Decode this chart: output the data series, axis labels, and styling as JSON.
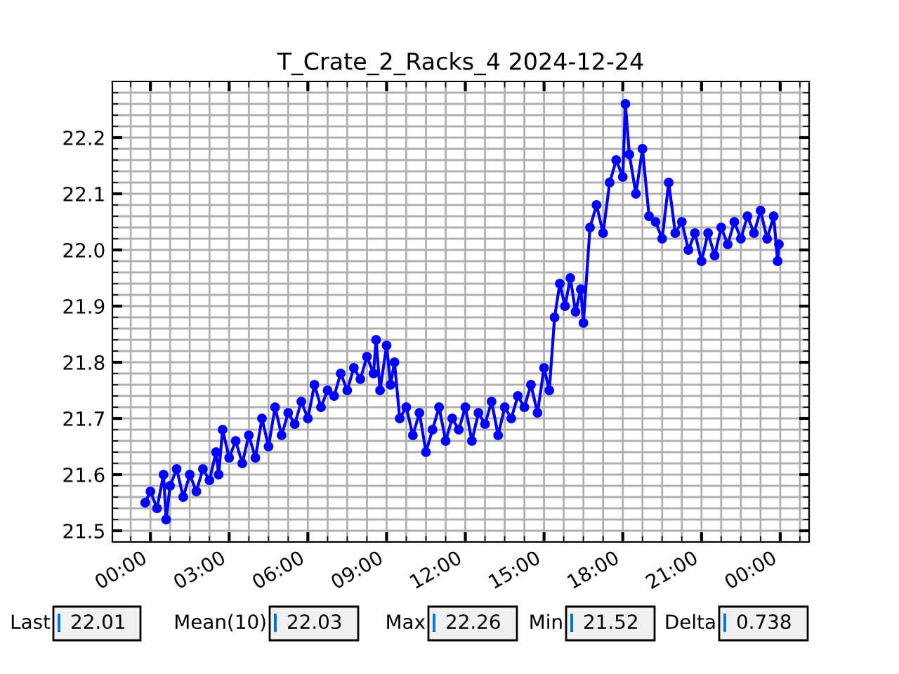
{
  "chart_data": {
    "type": "line",
    "title": "T_Crate_2_Racks_4 2024-12-24",
    "x": [
      -0.2,
      0.0,
      0.25,
      0.5,
      0.6,
      0.75,
      1.0,
      1.25,
      1.5,
      1.75,
      2.0,
      2.25,
      2.5,
      2.6,
      2.75,
      3.0,
      3.25,
      3.5,
      3.75,
      4.0,
      4.25,
      4.5,
      4.75,
      5.0,
      5.25,
      5.5,
      5.75,
      6.0,
      6.25,
      6.5,
      6.75,
      7.0,
      7.25,
      7.5,
      7.75,
      8.0,
      8.25,
      8.5,
      8.6,
      8.75,
      9.0,
      9.15,
      9.3,
      9.5,
      9.75,
      10.0,
      10.25,
      10.5,
      10.75,
      11.0,
      11.25,
      11.5,
      11.75,
      12.0,
      12.25,
      12.5,
      12.75,
      13.0,
      13.25,
      13.5,
      13.75,
      14.0,
      14.25,
      14.5,
      14.75,
      15.0,
      15.2,
      15.4,
      15.6,
      15.8,
      16.0,
      16.2,
      16.4,
      16.5,
      16.75,
      17.0,
      17.25,
      17.5,
      17.75,
      18.0,
      18.1,
      18.25,
      18.5,
      18.75,
      19.0,
      19.25,
      19.5,
      19.75,
      20.0,
      20.25,
      20.5,
      20.75,
      21.0,
      21.25,
      21.5,
      21.75,
      22.0,
      22.25,
      22.5,
      22.75,
      23.0,
      23.25,
      23.5,
      23.75,
      23.9,
      23.95
    ],
    "series": [
      {
        "color": "#0000ff",
        "values": [
          21.55,
          21.57,
          21.54,
          21.6,
          21.52,
          21.58,
          21.61,
          21.56,
          21.6,
          21.57,
          21.61,
          21.59,
          21.64,
          21.6,
          21.68,
          21.63,
          21.66,
          21.62,
          21.67,
          21.63,
          21.7,
          21.65,
          21.72,
          21.67,
          21.71,
          21.69,
          21.73,
          21.7,
          21.76,
          21.72,
          21.75,
          21.74,
          21.78,
          21.75,
          21.79,
          21.77,
          21.81,
          21.78,
          21.84,
          21.75,
          21.83,
          21.76,
          21.8,
          21.7,
          21.72,
          21.67,
          21.71,
          21.64,
          21.68,
          21.72,
          21.66,
          21.7,
          21.68,
          21.72,
          21.66,
          21.71,
          21.69,
          21.73,
          21.67,
          21.72,
          21.7,
          21.74,
          21.72,
          21.76,
          21.71,
          21.79,
          21.75,
          21.88,
          21.94,
          21.9,
          21.95,
          21.89,
          21.93,
          21.87,
          22.04,
          22.08,
          22.03,
          22.12,
          22.16,
          22.13,
          22.26,
          22.17,
          22.1,
          22.18,
          22.06,
          22.05,
          22.02,
          22.12,
          22.03,
          22.05,
          22.0,
          22.03,
          21.98,
          22.03,
          21.99,
          22.04,
          22.01,
          22.05,
          22.02,
          22.06,
          22.03,
          22.07,
          22.02,
          22.06,
          21.98,
          22.01
        ]
      }
    ],
    "marker": "circle",
    "line_style": "solid",
    "grid": true,
    "xlim": [
      -1.45,
      25.1
    ],
    "xticks": [
      {
        "value": 0,
        "label": "00:00"
      },
      {
        "value": 3,
        "label": "03:00"
      },
      {
        "value": 6,
        "label": "06:00"
      },
      {
        "value": 9,
        "label": "09:00"
      },
      {
        "value": 12,
        "label": "12:00"
      },
      {
        "value": 15,
        "label": "15:00"
      },
      {
        "value": 18,
        "label": "18:00"
      },
      {
        "value": 21,
        "label": "21:00"
      },
      {
        "value": 24,
        "label": "00:00"
      },
      {
        "value": -0.75,
        "label": null
      },
      {
        "value": 0.75,
        "label": null
      },
      {
        "value": 1.5,
        "label": null
      },
      {
        "value": 2.25,
        "label": null
      },
      {
        "value": 3.75,
        "label": null
      },
      {
        "value": 4.5,
        "label": null
      },
      {
        "value": 5.25,
        "label": null
      },
      {
        "value": 6.75,
        "label": null
      },
      {
        "value": 7.5,
        "label": null
      },
      {
        "value": 8.25,
        "label": null
      },
      {
        "value": 9.75,
        "label": null
      },
      {
        "value": 10.5,
        "label": null
      },
      {
        "value": 11.25,
        "label": null
      },
      {
        "value": 12.75,
        "label": null
      },
      {
        "value": 13.5,
        "label": null
      },
      {
        "value": 14.25,
        "label": null
      },
      {
        "value": 15.75,
        "label": null
      },
      {
        "value": 16.5,
        "label": null
      },
      {
        "value": 17.25,
        "label": null
      },
      {
        "value": 18.75,
        "label": null
      },
      {
        "value": 19.5,
        "label": null
      },
      {
        "value": 20.25,
        "label": null
      },
      {
        "value": 21.75,
        "label": null
      },
      {
        "value": 22.5,
        "label": null
      },
      {
        "value": 23.25,
        "label": null
      },
      {
        "value": 24.75,
        "label": null
      }
    ],
    "ylim": [
      21.48,
      22.3
    ],
    "yticks": [
      21.5,
      21.6,
      21.7,
      21.8,
      21.9,
      {
        "value": 22.0,
        "label": "22.0"
      },
      22.1,
      22.2,
      {
        "value": 21.48,
        "label": null
      },
      {
        "value": 21.52,
        "label": null
      },
      {
        "value": 21.54,
        "label": null
      },
      {
        "value": 21.56,
        "label": null
      },
      {
        "value": 21.58,
        "label": null
      },
      {
        "value": 21.62,
        "label": null
      },
      {
        "value": 21.64,
        "label": null
      },
      {
        "value": 21.66,
        "label": null
      },
      {
        "value": 21.68,
        "label": null
      },
      {
        "value": 21.72,
        "label": null
      },
      {
        "value": 21.74,
        "label": null
      },
      {
        "value": 21.76,
        "label": null
      },
      {
        "value": 21.78,
        "label": null
      },
      {
        "value": 21.82,
        "label": null
      },
      {
        "value": 21.84,
        "label": null
      },
      {
        "value": 21.86,
        "label": null
      },
      {
        "value": 21.88,
        "label": null
      },
      {
        "value": 21.92,
        "label": null
      },
      {
        "value": 21.94,
        "label": null
      },
      {
        "value": 21.96,
        "label": null
      },
      {
        "value": 21.98,
        "label": null
      },
      {
        "value": 22.02,
        "label": null
      },
      {
        "value": 22.04,
        "label": null
      },
      {
        "value": 22.06,
        "label": null
      },
      {
        "value": 22.08,
        "label": null
      },
      {
        "value": 22.12,
        "label": null
      },
      {
        "value": 22.14,
        "label": null
      },
      {
        "value": 22.16,
        "label": null
      },
      {
        "value": 22.18,
        "label": null
      },
      {
        "value": 22.22,
        "label": null
      },
      {
        "value": 22.24,
        "label": null
      },
      {
        "value": 22.26,
        "label": null
      },
      {
        "value": 22.28,
        "label": null
      }
    ],
    "annotations": [
      "Last",
      "22.01",
      "Mean(10)",
      "22.03",
      "Max",
      "22.26",
      "Min",
      "21.52",
      "Delta",
      "0.738"
    ]
  }
}
